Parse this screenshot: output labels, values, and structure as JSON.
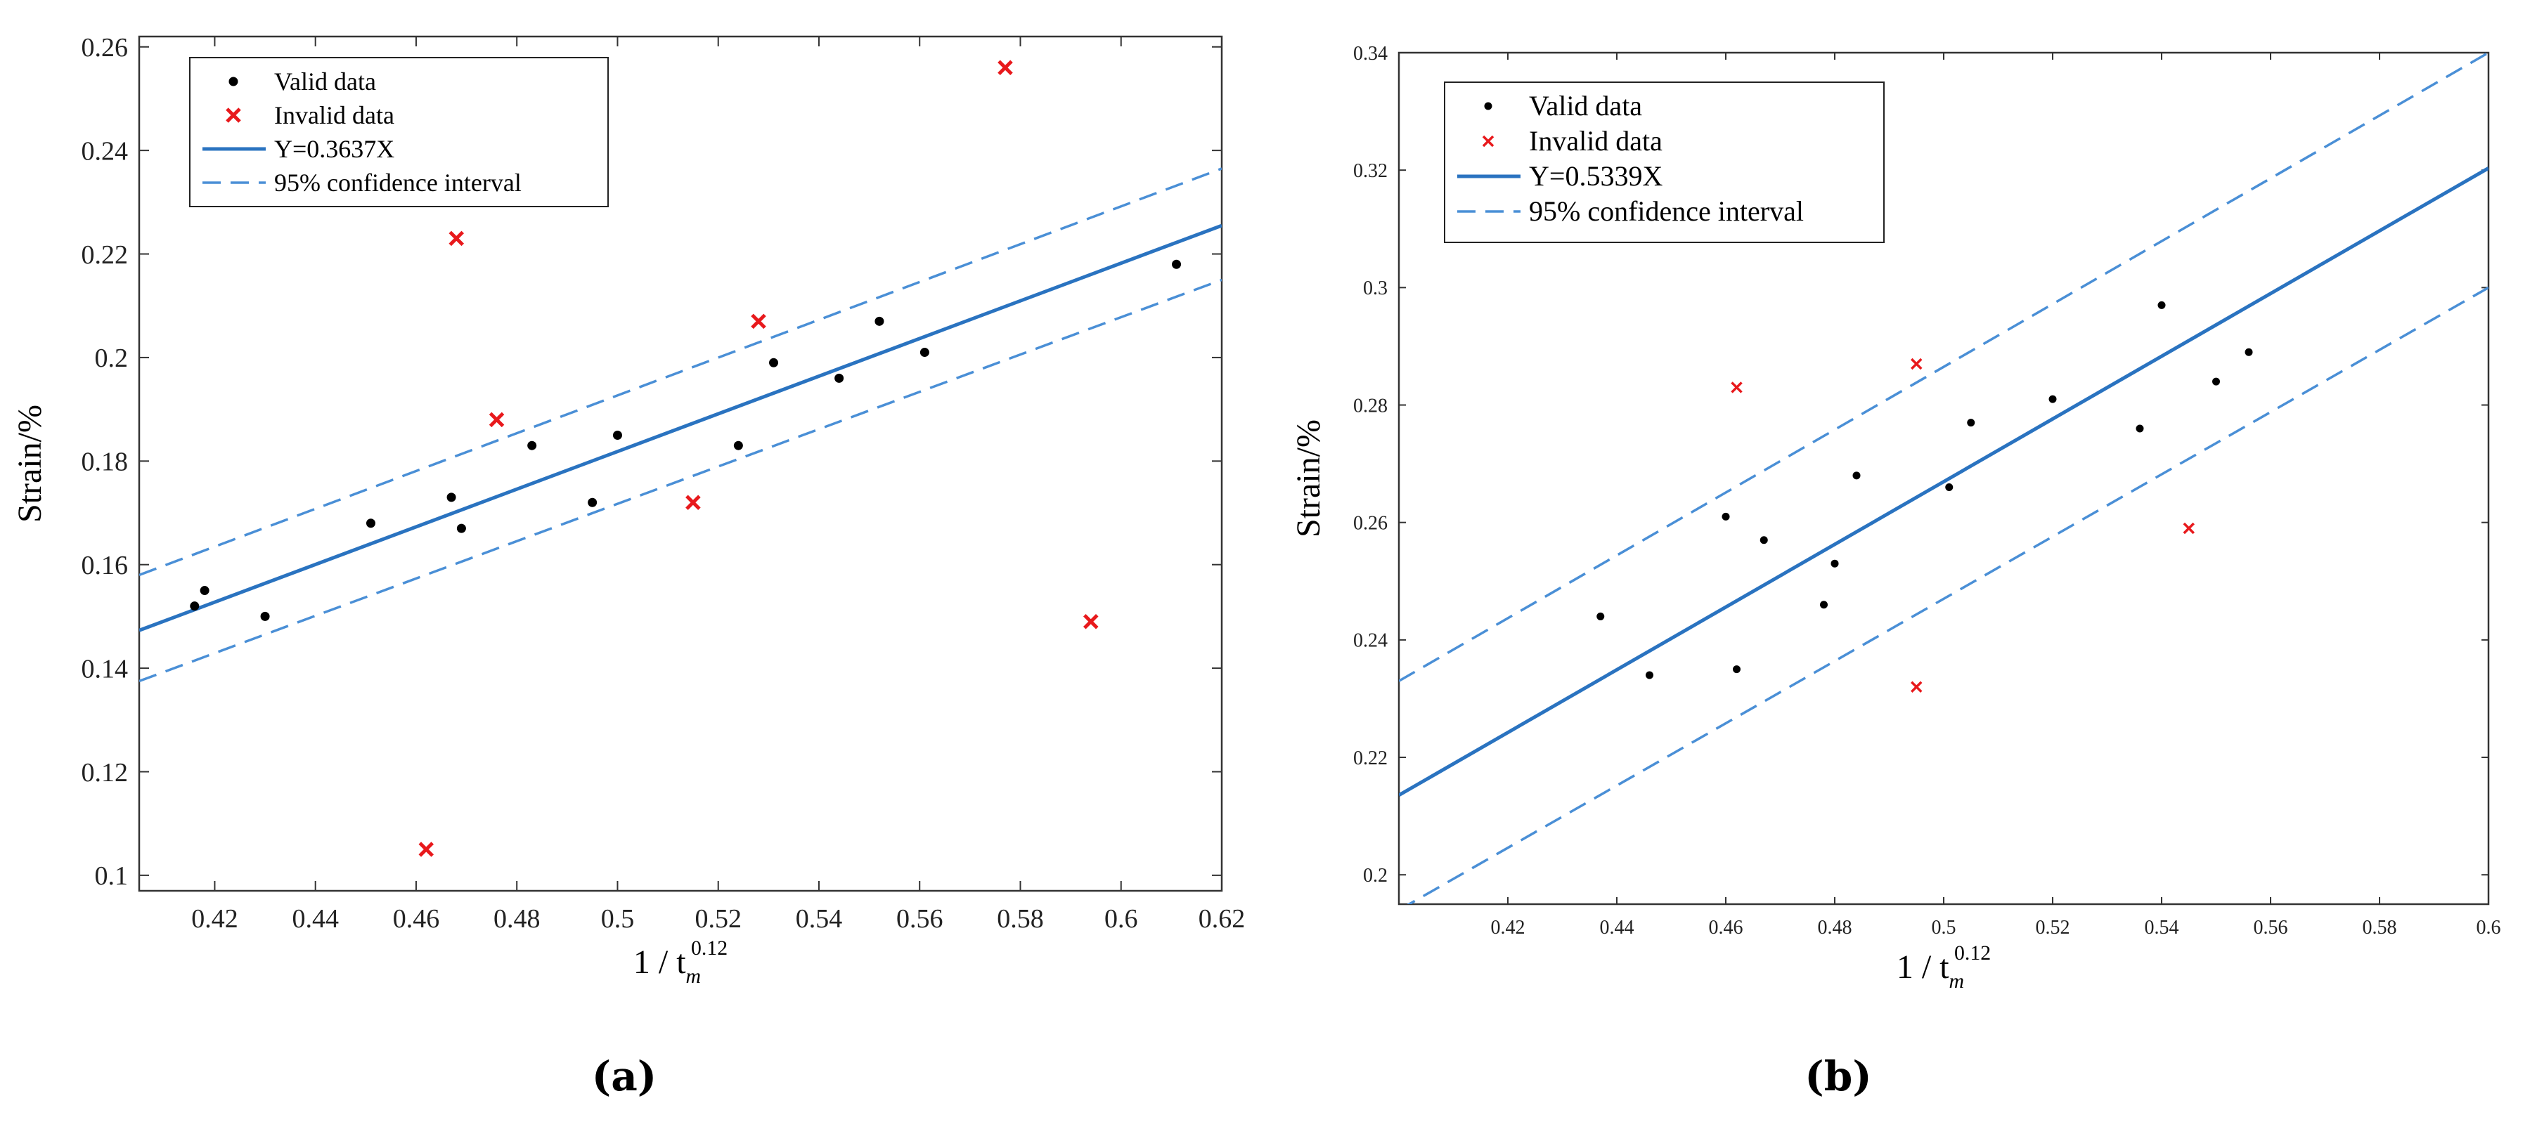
{
  "colors": {
    "valid": "#000000",
    "invalid": "#e8191c",
    "fit": "#2a73c0",
    "ci": "#4a8fd6",
    "axis": "#333333"
  },
  "chart_data": [
    {
      "type": "scatter",
      "panel_label": "(a)",
      "xlabel_prefix": "1 / t",
      "xlabel_sub": "m",
      "xlabel_sup": "0.12",
      "ylabel": "Strain/%",
      "xlim": [
        0.405,
        0.62
      ],
      "ylim": [
        0.097,
        0.262
      ],
      "xticks": [
        0.42,
        0.44,
        0.46,
        0.48,
        0.5,
        0.52,
        0.54,
        0.56,
        0.58,
        0.6,
        0.62
      ],
      "xtick_labels": [
        "0.42",
        "0.44",
        "0.46",
        "0.48",
        "0.5",
        "0.52",
        "0.54",
        "0.56",
        "0.58",
        "0.6",
        "0.62"
      ],
      "yticks": [
        0.1,
        0.12,
        0.14,
        0.16,
        0.18,
        0.2,
        0.22,
        0.24,
        0.26
      ],
      "ytick_labels": [
        "0.1",
        "0.12",
        "0.14",
        "0.16",
        "0.18",
        "0.2",
        "0.22",
        "0.24",
        "0.26"
      ],
      "legend": {
        "position": "top-left",
        "valid": "Valid data",
        "invalid": "Invalid data",
        "fit": "Y=0.3637X",
        "ci": "95% confidence interval"
      },
      "fit": {
        "slope": 0.3637
      },
      "ci_upper": [
        [
          0.405,
          0.158
        ],
        [
          0.62,
          0.2365
        ]
      ],
      "ci_lower": [
        [
          0.405,
          0.1375
        ],
        [
          0.62,
          0.215
        ]
      ],
      "valid_points": [
        [
          0.416,
          0.152
        ],
        [
          0.418,
          0.155
        ],
        [
          0.43,
          0.15
        ],
        [
          0.451,
          0.168
        ],
        [
          0.467,
          0.173
        ],
        [
          0.469,
          0.167
        ],
        [
          0.483,
          0.183
        ],
        [
          0.495,
          0.172
        ],
        [
          0.5,
          0.185
        ],
        [
          0.524,
          0.183
        ],
        [
          0.531,
          0.199
        ],
        [
          0.544,
          0.196
        ],
        [
          0.552,
          0.207
        ],
        [
          0.561,
          0.201
        ],
        [
          0.611,
          0.218
        ]
      ],
      "invalid_points": [
        [
          0.462,
          0.105
        ],
        [
          0.468,
          0.223
        ],
        [
          0.476,
          0.188
        ],
        [
          0.515,
          0.172
        ],
        [
          0.528,
          0.207
        ],
        [
          0.577,
          0.256
        ],
        [
          0.594,
          0.149
        ]
      ]
    },
    {
      "type": "scatter",
      "panel_label": "(b)",
      "xlabel_prefix": "1 / t",
      "xlabel_sub": "m",
      "xlabel_sup": "0.12",
      "ylabel": "Strain/%",
      "xlim": [
        0.4,
        0.6
      ],
      "ylim": [
        0.195,
        0.34
      ],
      "xticks": [
        0.42,
        0.44,
        0.46,
        0.48,
        0.5,
        0.52,
        0.54,
        0.56,
        0.58,
        0.6
      ],
      "xtick_labels": [
        "0.42",
        "0.44",
        "0.46",
        "0.48",
        "0.5",
        "0.52",
        "0.54",
        "0.56",
        "0.58",
        "0.6"
      ],
      "yticks": [
        0.2,
        0.22,
        0.24,
        0.26,
        0.28,
        0.3,
        0.32,
        0.34
      ],
      "ytick_labels": [
        "0.2",
        "0.22",
        "0.24",
        "0.26",
        "0.28",
        "0.3",
        "0.32",
        "0.34"
      ],
      "legend": {
        "position": "top-left",
        "valid": "Valid data",
        "invalid": "Invalid data",
        "fit": "Y=0.5339X",
        "ci": "95% confidence interval"
      },
      "fit": {
        "slope": 0.5339
      },
      "ci_upper": [
        [
          0.4,
          0.233
        ],
        [
          0.6,
          0.34
        ]
      ],
      "ci_lower": [
        [
          0.4,
          0.194
        ],
        [
          0.6,
          0.3
        ]
      ],
      "valid_points": [
        [
          0.437,
          0.244
        ],
        [
          0.446,
          0.234
        ],
        [
          0.46,
          0.261
        ],
        [
          0.462,
          0.235
        ],
        [
          0.467,
          0.257
        ],
        [
          0.478,
          0.246
        ],
        [
          0.48,
          0.253
        ],
        [
          0.484,
          0.268
        ],
        [
          0.501,
          0.266
        ],
        [
          0.505,
          0.277
        ],
        [
          0.52,
          0.281
        ],
        [
          0.536,
          0.276
        ],
        [
          0.54,
          0.297
        ],
        [
          0.55,
          0.284
        ],
        [
          0.556,
          0.289
        ]
      ],
      "invalid_points": [
        [
          0.462,
          0.283
        ],
        [
          0.495,
          0.287
        ],
        [
          0.495,
          0.232
        ],
        [
          0.545,
          0.259
        ]
      ]
    }
  ]
}
